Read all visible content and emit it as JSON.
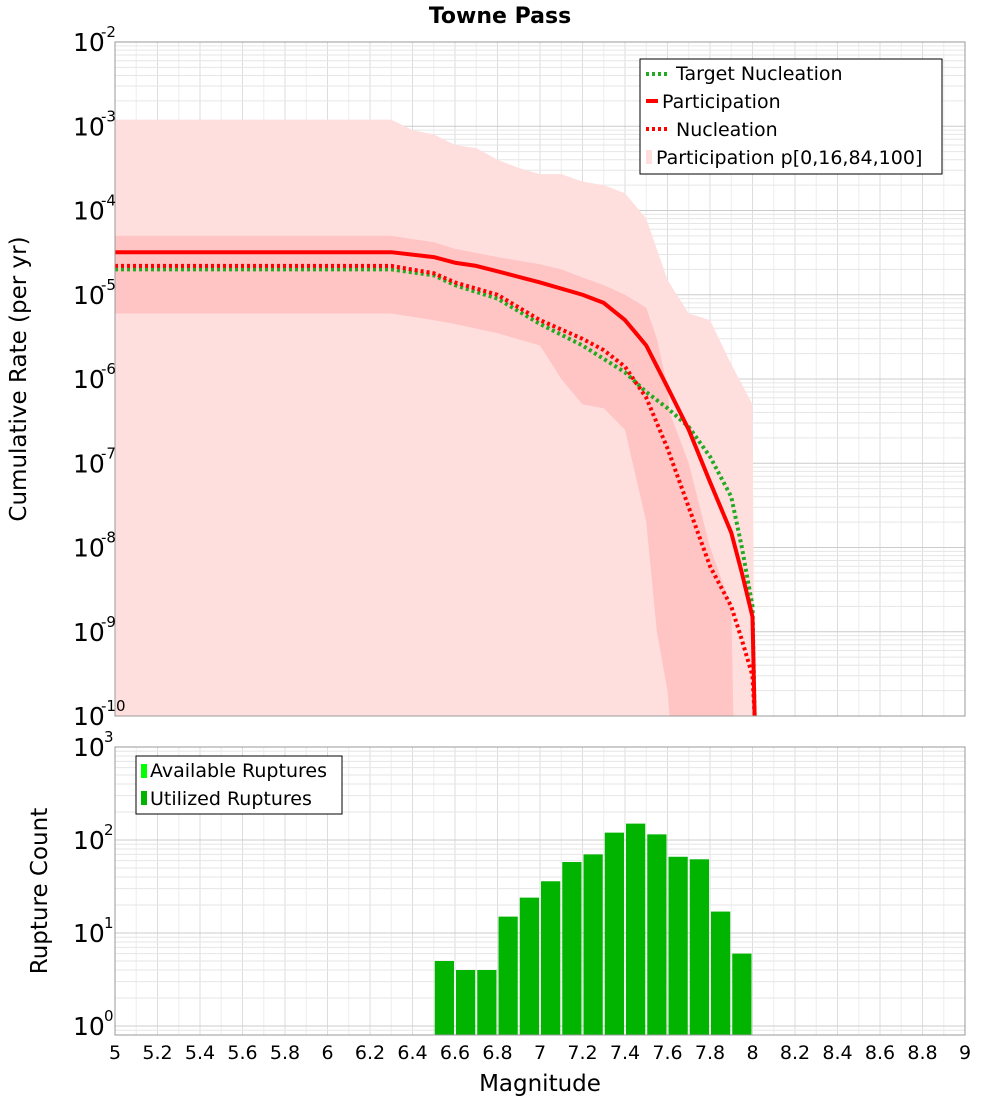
{
  "chart_data": [
    {
      "type": "line",
      "title": "Towne Pass",
      "ylabel": "Cumulative Rate (per yr)",
      "xlim": [
        5,
        9
      ],
      "ylim": [
        1e-10,
        0.01
      ],
      "yscale": "log",
      "grid": true,
      "legend_position": "top-right",
      "series": [
        {
          "name": "Target Nucleation",
          "style": "dotted",
          "color": "#22aa22",
          "x": [
            5.0,
            5.5,
            6.0,
            6.3,
            6.5,
            6.6,
            6.8,
            7.0,
            7.2,
            7.4,
            7.5,
            7.6,
            7.7,
            7.8,
            7.9,
            7.95,
            8.0,
            8.01
          ],
          "y": [
            2e-05,
            2e-05,
            2e-05,
            2e-05,
            1.7e-05,
            1.3e-05,
            9e-06,
            4.5e-06,
            2.5e-06,
            1.2e-06,
            7e-07,
            4.5e-07,
            2.7e-07,
            1.2e-07,
            4e-08,
            1e-08,
            2e-09,
            1e-10
          ]
        },
        {
          "name": "Participation",
          "style": "solid",
          "color": "#ff0000",
          "x": [
            5.0,
            5.5,
            6.0,
            6.3,
            6.5,
            6.6,
            6.7,
            6.8,
            7.0,
            7.2,
            7.3,
            7.4,
            7.5,
            7.6,
            7.7,
            7.8,
            7.9,
            7.95,
            8.0,
            8.01
          ],
          "y": [
            3.2e-05,
            3.2e-05,
            3.2e-05,
            3.2e-05,
            2.8e-05,
            2.4e-05,
            2.2e-05,
            1.9e-05,
            1.4e-05,
            1e-05,
            8e-06,
            5e-06,
            2.5e-06,
            8e-07,
            2.5e-07,
            6e-08,
            1.5e-08,
            5e-09,
            1.5e-09,
            1e-10
          ]
        },
        {
          "name": "Nucleation",
          "style": "dotted",
          "color": "#ff0000",
          "x": [
            5.0,
            5.5,
            6.0,
            6.3,
            6.5,
            6.6,
            6.8,
            7.0,
            7.2,
            7.3,
            7.4,
            7.5,
            7.6,
            7.7,
            7.8,
            7.9,
            7.95,
            8.0,
            8.01
          ],
          "y": [
            2.2e-05,
            2.2e-05,
            2.2e-05,
            2.2e-05,
            1.8e-05,
            1.4e-05,
            1e-05,
            5e-06,
            3e-06,
            2.2e-06,
            1.4e-06,
            6e-07,
            1.5e-07,
            3e-08,
            6e-09,
            2e-09,
            8e-10,
            3e-10,
            1e-10
          ]
        }
      ],
      "bands": [
        {
          "name": "Participation p[0,16,84,100]",
          "color": "#ffdede",
          "x": [
            5.0,
            6.3,
            6.4,
            6.5,
            6.6,
            6.7,
            6.8,
            6.9,
            7.0,
            7.1,
            7.2,
            7.3,
            7.4,
            7.5,
            7.6,
            7.7,
            7.8,
            7.9,
            8.0,
            8.01
          ],
          "lower": [
            1e-10,
            1e-10,
            1e-10,
            1e-10,
            1e-10,
            1e-10,
            1e-10,
            1e-10,
            1e-10,
            1e-10,
            1e-10,
            1e-10,
            1e-10,
            1e-10,
            1e-10,
            1e-10,
            1e-10,
            1e-10,
            1e-10,
            1e-10
          ],
          "upper": [
            0.0012,
            0.0012,
            0.0009,
            0.0008,
            0.0006,
            0.00055,
            0.0004,
            0.00032,
            0.00027,
            0.00027,
            0.00022,
            0.0002,
            0.00016,
            8e-05,
            1.5e-05,
            6e-06,
            5e-06,
            1.5e-06,
            5e-07,
            1e-10
          ]
        },
        {
          "name": "Participation 16-84",
          "color": "#ffc4c4",
          "x": [
            5.0,
            6.3,
            6.5,
            6.6,
            6.8,
            7.0,
            7.1,
            7.2,
            7.3,
            7.4,
            7.5,
            7.55,
            7.6,
            7.61,
            7.7,
            7.8,
            7.9,
            7.91
          ],
          "lower": [
            6e-06,
            6e-06,
            5e-06,
            4.5e-06,
            3.5e-06,
            2.5e-06,
            1e-06,
            5e-07,
            4.5e-07,
            2.5e-07,
            2e-08,
            1e-09,
            2e-10,
            1e-10,
            1e-10,
            1e-10,
            1e-10,
            1e-10
          ],
          "upper": [
            5e-05,
            5e-05,
            4.2e-05,
            3.5e-05,
            2.8e-05,
            2.3e-05,
            2e-05,
            1.6e-05,
            1.3e-05,
            1e-05,
            7e-06,
            3e-06,
            8e-07,
            4e-07,
            1e-07,
            1e-08,
            2e-09,
            1e-10
          ]
        }
      ],
      "yticks": [
        {
          "base": "10",
          "exp": "-10"
        },
        {
          "base": "10",
          "exp": "-9"
        },
        {
          "base": "10",
          "exp": "-8"
        },
        {
          "base": "10",
          "exp": "-7"
        },
        {
          "base": "10",
          "exp": "-6"
        },
        {
          "base": "10",
          "exp": "-5"
        },
        {
          "base": "10",
          "exp": "-4"
        },
        {
          "base": "10",
          "exp": "-3"
        },
        {
          "base": "10",
          "exp": "-2"
        }
      ]
    },
    {
      "type": "bar",
      "ylabel": "Rupture Count",
      "xlabel": "Magnitude",
      "xlim": [
        5,
        9
      ],
      "ylim": [
        0.8,
        1000
      ],
      "yscale": "log",
      "grid": true,
      "legend_position": "top-left",
      "bin_width": 0.1,
      "series": [
        {
          "name": "Available Ruptures",
          "color": "#00ff00",
          "x": [],
          "values": []
        },
        {
          "name": "Utilized Ruptures",
          "color": "#00b400",
          "x": [
            6.55,
            6.65,
            6.75,
            6.85,
            6.95,
            7.05,
            7.15,
            7.25,
            7.35,
            7.45,
            7.55,
            7.65,
            7.75,
            7.85,
            7.95
          ],
          "values": [
            5,
            4,
            4,
            15,
            24,
            36,
            58,
            70,
            120,
            150,
            115,
            66,
            62,
            17,
            6
          ]
        }
      ],
      "xticks": [
        "5",
        "5.2",
        "5.4",
        "5.6",
        "5.8",
        "6",
        "6.2",
        "6.4",
        "6.6",
        "6.8",
        "7",
        "7.2",
        "7.4",
        "7.6",
        "7.8",
        "8",
        "8.2",
        "8.4",
        "8.6",
        "8.8",
        "9"
      ],
      "yticks": [
        {
          "base": "10",
          "exp": "0"
        },
        {
          "base": "10",
          "exp": "1"
        },
        {
          "base": "10",
          "exp": "2"
        },
        {
          "base": "10",
          "exp": "3"
        }
      ]
    }
  ]
}
